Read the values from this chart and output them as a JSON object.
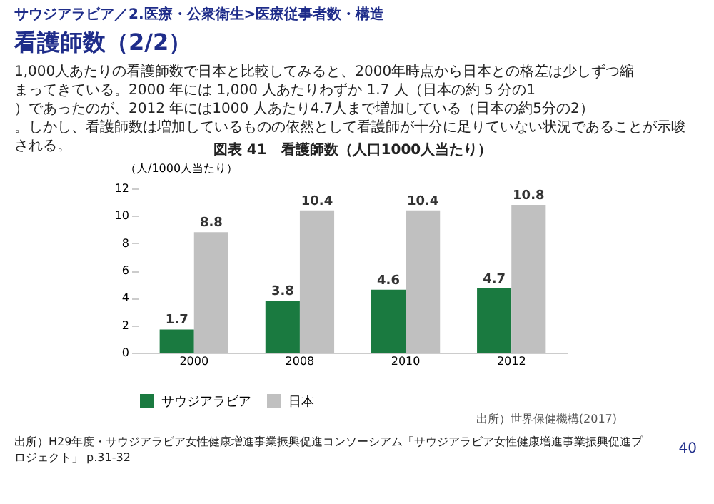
{
  "chart_data": {
    "type": "bar",
    "title": "看護師数（2/2）",
    "subtitle": "図表 41　看護師数（人口1000人当たり）",
    "ylabel": "（人/1000人当たり）",
    "categories": [
      "2000",
      "2008",
      "2010",
      "2012"
    ],
    "series": [
      {
        "name": "サウジアラビア",
        "color": "#1a7a40",
        "values": [
          1.7,
          3.8,
          4.6,
          4.7
        ]
      },
      {
        "name": "日本",
        "color": "#c0c0c0",
        "values": [
          8.8,
          10.4,
          10.4,
          10.8
        ]
      }
    ],
    "ylim": [
      0,
      12
    ],
    "yticks": [
      0,
      2,
      4,
      6,
      8,
      10,
      12
    ],
    "grid": false,
    "legend": "bottom",
    "data_labels": true,
    "annotations": [
      "サウジアラビア／2.医療・公衆衛生>医療従事者数・構造",
      "1,000人あたりの看護師数で日本と比較してみると、2000年時点から日本との格差は少しずつ縮まってきている。2000 年には 1,000 人あたりわずか 1.7 人（日本の約 5 分の1）であったのが、2012 年には1000 人あたり4.7人まで増加している（日本の約5分の2）。しかし、看護師数は増加しているものの依然として看護師が十分に足りていない状況であることが示唆される。",
      "出所）世界保健機構(2017)",
      "出所）H29年度・サウジアラビア女性健康増進事業振興促進コンソーシアム「サウジアラビア女性健康増進事業振興促進プロジェクト」 p.31-32",
      "40"
    ]
  }
}
